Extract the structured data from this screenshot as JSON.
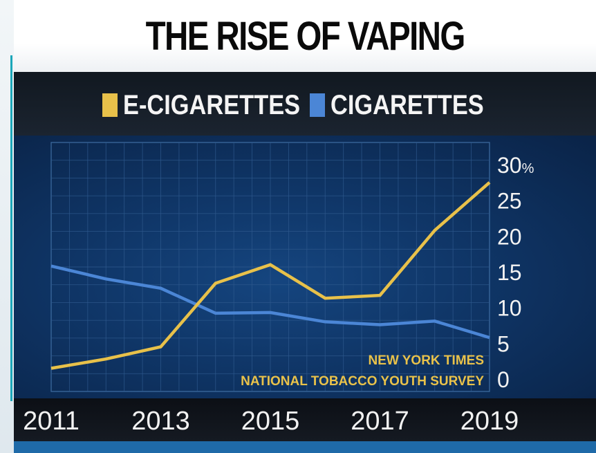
{
  "title": "THE RISE OF VAPING",
  "legend": [
    {
      "label": "E-CIGARETTES",
      "color": "#e8c14a"
    },
    {
      "label": "CIGARETTES",
      "color": "#4b86d6"
    }
  ],
  "source": {
    "line1": "NEW YORK TIMES",
    "line2": "NATIONAL TOBACCO YOUTH SURVEY"
  },
  "y_unit": "%",
  "chart_data": {
    "type": "line",
    "title": "THE RISE OF VAPING",
    "x": [
      2011,
      2012,
      2013,
      2014,
      2015,
      2016,
      2017,
      2018,
      2019
    ],
    "x_tick_labels": [
      "2011",
      "2013",
      "2015",
      "2017",
      "2019"
    ],
    "y_tick_labels": [
      "0",
      "5",
      "10",
      "15",
      "20",
      "25",
      "30"
    ],
    "xlim": [
      2011,
      2019
    ],
    "ylim": [
      0,
      30
    ],
    "grid": true,
    "legend_position": "top",
    "y_axis_side": "right",
    "series": [
      {
        "name": "E-CIGARETTES",
        "color": "#e8c14a",
        "values": [
          1.5,
          2.8,
          4.5,
          13.4,
          16.0,
          11.3,
          11.7,
          20.8,
          27.5
        ]
      },
      {
        "name": "CIGARETTES",
        "color": "#4b86d6",
        "values": [
          15.8,
          14.0,
          12.7,
          9.2,
          9.3,
          8.0,
          7.6,
          8.1,
          5.8
        ]
      }
    ]
  }
}
